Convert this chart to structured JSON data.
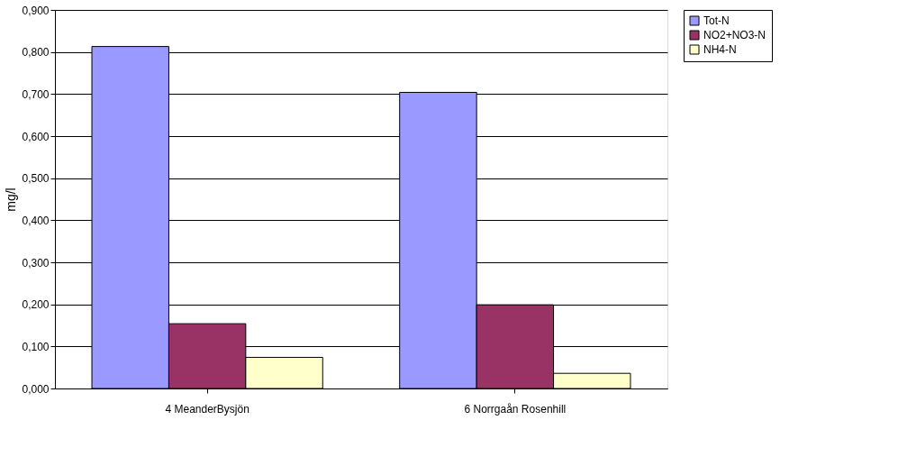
{
  "chart_data": {
    "type": "bar",
    "ylabel": "mg/l",
    "categories": [
      "4 MeanderBysjön",
      "6 Norrgaån Rosenhill"
    ],
    "series": [
      {
        "name": "Tot-N",
        "color": "#9999ff",
        "values": [
          0.813,
          0.704
        ]
      },
      {
        "name": "NO2+NO3-N",
        "color": "#993366",
        "values": [
          0.154,
          0.199
        ]
      },
      {
        "name": "NH4-N",
        "color": "#ffffcc",
        "values": [
          0.074,
          0.036
        ]
      }
    ],
    "ylim": [
      0,
      0.9
    ],
    "yticks": [
      {
        "value": 0,
        "label": "0,000"
      },
      {
        "value": 0.1,
        "label": "0,100"
      },
      {
        "value": 0.2,
        "label": "0,200"
      },
      {
        "value": 0.3,
        "label": "0,300"
      },
      {
        "value": 0.4,
        "label": "0,400"
      },
      {
        "value": 0.5,
        "label": "0,500"
      },
      {
        "value": 0.6,
        "label": "0,600"
      },
      {
        "value": 0.7,
        "label": "0,700"
      },
      {
        "value": 0.8,
        "label": "0,800"
      },
      {
        "value": 0.9,
        "label": "0,900"
      }
    ],
    "grid": "y",
    "legend": "right"
  }
}
